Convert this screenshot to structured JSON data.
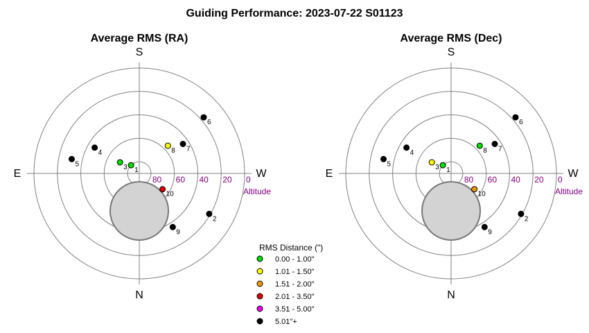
{
  "title": "Guiding Performance: 2023-07-22 S01123",
  "compass": {
    "north": "N",
    "south": "S",
    "east": "E",
    "west": "W"
  },
  "altitude_axis": {
    "label": "Altitude",
    "ticks": [
      "80",
      "60",
      "40",
      "20",
      "0"
    ]
  },
  "legend": {
    "title": "RMS Distance (\")",
    "items": [
      {
        "label": "0.00 - 1.00\"",
        "color": "#00dd00"
      },
      {
        "label": "1.01 - 1.50\"",
        "color": "#ffff00"
      },
      {
        "label": "1.51 - 2.00\"",
        "color": "#ee9900"
      },
      {
        "label": "2.01 - 3.50\"",
        "color": "#dd0000"
      },
      {
        "label": "3.51 - 5.00\"",
        "color": "#ee00ee"
      },
      {
        "label": "5.01\"+",
        "color": "#000000"
      }
    ]
  },
  "colors": {
    "altitude_text": "#800080",
    "grid": "#808080",
    "obstruction_fill": "#d3d3d3",
    "obstruction_stroke": "#777777"
  },
  "chart_data": [
    {
      "type": "scatter",
      "coordinate_system": "polar (altitude radial, azimuth angular; S top, W right, N bottom, E left)",
      "title": "Average RMS (RA)",
      "radial_ticks": [
        80,
        60,
        40,
        20,
        0
      ],
      "points": [
        {
          "label": "1",
          "azimuth": 135,
          "altitude": 80,
          "color": "#00dd00"
        },
        {
          "label": "2",
          "azimuth": 300,
          "altitude": 21,
          "color": "#000000"
        },
        {
          "label": "3",
          "azimuth": 120,
          "altitude": 71,
          "color": "#00dd00"
        },
        {
          "label": "4",
          "azimuth": 120,
          "altitude": 46,
          "color": "#000000"
        },
        {
          "label": "5",
          "azimuth": 102,
          "altitude": 31,
          "color": "#000000"
        },
        {
          "label": "6",
          "azimuth": 229,
          "altitude": 17,
          "color": "#000000"
        },
        {
          "label": "7",
          "azimuth": 236,
          "altitude": 45,
          "color": "#000000"
        },
        {
          "label": "8",
          "azimuth": 226,
          "altitude": 56,
          "color": "#ffff00"
        },
        {
          "label": "9",
          "azimuth": 328,
          "altitude": 36,
          "color": "#000000"
        },
        {
          "label": "10",
          "azimuth": 304,
          "altitude": 66,
          "color": "#dd0000"
        }
      ]
    },
    {
      "type": "scatter",
      "coordinate_system": "polar (altitude radial, azimuth angular; S top, W right, N bottom, E left)",
      "title": "Average RMS (Dec)",
      "radial_ticks": [
        80,
        60,
        40,
        20,
        0
      ],
      "points": [
        {
          "label": "1",
          "azimuth": 135,
          "altitude": 80,
          "color": "#00dd00"
        },
        {
          "label": "2",
          "azimuth": 300,
          "altitude": 21,
          "color": "#000000"
        },
        {
          "label": "3",
          "azimuth": 120,
          "altitude": 71,
          "color": "#ffff00"
        },
        {
          "label": "4",
          "azimuth": 120,
          "altitude": 46,
          "color": "#000000"
        },
        {
          "label": "5",
          "azimuth": 102,
          "altitude": 31,
          "color": "#000000"
        },
        {
          "label": "6",
          "azimuth": 229,
          "altitude": 17,
          "color": "#000000"
        },
        {
          "label": "7",
          "azimuth": 236,
          "altitude": 45,
          "color": "#000000"
        },
        {
          "label": "8",
          "azimuth": 226,
          "altitude": 56,
          "color": "#00dd00"
        },
        {
          "label": "9",
          "azimuth": 328,
          "altitude": 36,
          "color": "#000000"
        },
        {
          "label": "10",
          "azimuth": 304,
          "altitude": 66,
          "color": "#ee9900"
        }
      ]
    }
  ]
}
